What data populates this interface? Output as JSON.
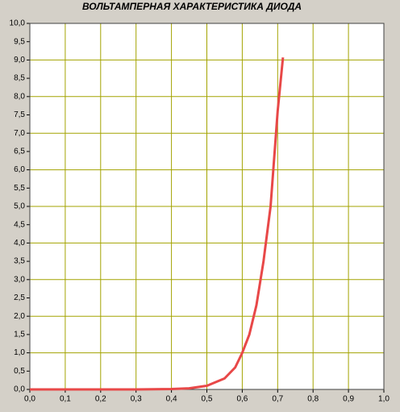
{
  "chart_data": {
    "type": "line",
    "title": "ВОЛЬТАМПЕРНАЯ  ХАРАКТЕРИСТИКА  ДИОДА",
    "x": [
      0,
      0.1,
      0.2,
      0.3,
      0.4,
      0.45,
      0.5,
      0.55,
      0.58,
      0.6,
      0.62,
      0.64,
      0.66,
      0.68,
      0.7,
      0.715
    ],
    "series": [
      {
        "color": "#e84848",
        "values": [
          0,
          0,
          0,
          0,
          0.01,
          0.03,
          0.1,
          0.3,
          0.6,
          1.0,
          1.5,
          2.3,
          3.5,
          5.0,
          7.6,
          9.07
        ]
      }
    ],
    "xlim": [
      0,
      1
    ],
    "ylim": [
      0,
      10
    ],
    "xticks": [
      {
        "value": 0,
        "label": "0,0"
      },
      {
        "value": 0.1,
        "label": "0,1"
      },
      {
        "value": 0.2,
        "label": "0,2"
      },
      {
        "value": 0.3,
        "label": "0,3"
      },
      {
        "value": 0.4,
        "label": "0,4"
      },
      {
        "value": 0.5,
        "label": "0,5"
      },
      {
        "value": 0.6,
        "label": "0,6"
      },
      {
        "value": 0.7,
        "label": "0,7"
      },
      {
        "value": 0.8,
        "label": "0,8"
      },
      {
        "value": 0.9,
        "label": "0,9"
      },
      {
        "value": 1,
        "label": "1,0"
      }
    ],
    "yticks": [
      {
        "value": 0,
        "label": "0,0"
      },
      {
        "value": 0.5,
        "label": "0,5"
      },
      {
        "value": 1,
        "label": "1,0"
      },
      {
        "value": 1.5,
        "label": "1,5"
      },
      {
        "value": 2,
        "label": "2,0"
      },
      {
        "value": 2.5,
        "label": "2,5"
      },
      {
        "value": 3,
        "label": "3,0"
      },
      {
        "value": 3.5,
        "label": "3,5"
      },
      {
        "value": 4,
        "label": "4,0"
      },
      {
        "value": 4.5,
        "label": "4,5"
      },
      {
        "value": 5,
        "label": "5,0"
      },
      {
        "value": 5.5,
        "label": "5,5"
      },
      {
        "value": 6,
        "label": "6,0"
      },
      {
        "value": 6.5,
        "label": "6,5"
      },
      {
        "value": 7,
        "label": "7,0"
      },
      {
        "value": 7.5,
        "label": "7,5"
      },
      {
        "value": 8,
        "label": "8,0"
      },
      {
        "value": 8.5,
        "label": "8,5"
      },
      {
        "value": 9,
        "label": "9,0"
      },
      {
        "value": 9.5,
        "label": "9,5"
      },
      {
        "value": 10,
        "label": "10,0"
      }
    ],
    "grid": true,
    "grid_color": "#a3a300"
  }
}
